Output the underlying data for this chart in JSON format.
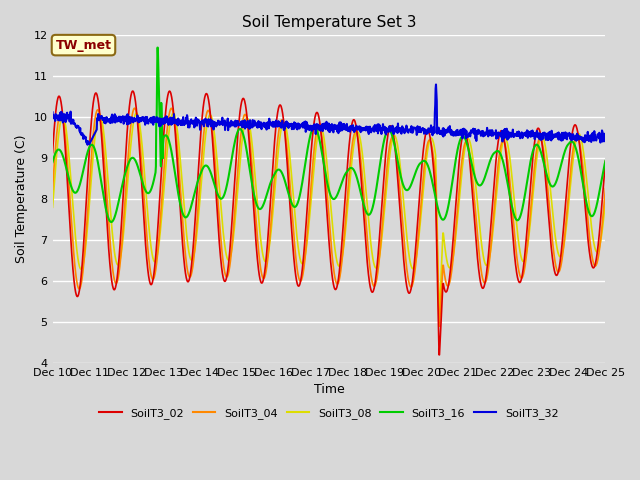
{
  "title": "Soil Temperature Set 3",
  "xlabel": "Time",
  "ylabel": "Soil Temperature (C)",
  "ylim": [
    4.0,
    12.0
  ],
  "yticks": [
    4.0,
    5.0,
    6.0,
    7.0,
    8.0,
    9.0,
    10.0,
    11.0,
    12.0
  ],
  "background_color": "#d8d8d8",
  "plot_bg_color": "#d8d8d8",
  "annotation_label": "TW_met",
  "annotation_text_color": "#8b0000",
  "annotation_bg_color": "#ffffcc",
  "annotation_border_color": "#8b6914",
  "series_colors": {
    "SoilT3_02": "#dd0000",
    "SoilT3_04": "#ff8800",
    "SoilT3_08": "#dddd00",
    "SoilT3_16": "#00cc00",
    "SoilT3_32": "#0000dd"
  },
  "legend_line_colors": [
    "#dd0000",
    "#ff8800",
    "#dddd00",
    "#00cc00",
    "#0000dd"
  ],
  "legend_labels": [
    "SoilT3_02",
    "SoilT3_04",
    "SoilT3_08",
    "SoilT3_16",
    "SoilT3_32"
  ],
  "x_start": 10,
  "x_end": 25,
  "xtick_positions": [
    10,
    11,
    12,
    13,
    14,
    15,
    16,
    17,
    18,
    19,
    20,
    21,
    22,
    23,
    24,
    25
  ],
  "xtick_labels": [
    "Dec 10",
    "Dec 11",
    "Dec 12",
    "Dec 13",
    "Dec 14",
    "Dec 15",
    "Dec 16",
    "Dec 17",
    "Dec 18",
    "Dec 19",
    "Dec 20",
    "Dec 21",
    "Dec 22",
    "Dec 23",
    "Dec 24",
    "Dec 25"
  ]
}
